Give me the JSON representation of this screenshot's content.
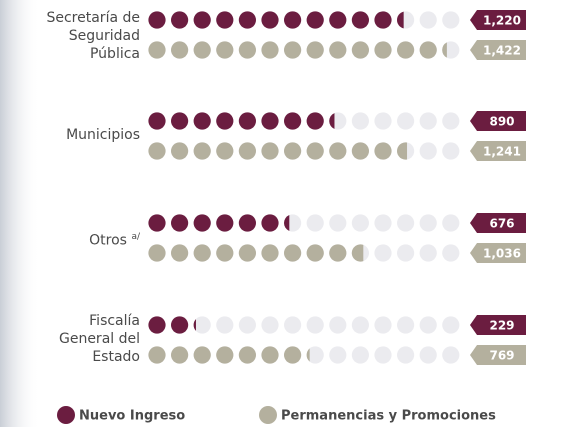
{
  "chart_data": {
    "type": "pictogram",
    "categories": [
      "Secretaría de Seguridad Pública",
      "Municipios",
      "Otros",
      "Fiscalía General del Estado"
    ],
    "category_superscripts": [
      null,
      null,
      "a/",
      null
    ],
    "series": [
      {
        "name": "Nuevo Ingreso",
        "color": "#6b1d40",
        "values": [
          1220,
          890,
          676,
          229
        ],
        "value_labels": [
          "1,220",
          "890",
          "676",
          "229"
        ]
      },
      {
        "name": "Permanencias y Promociones",
        "color": "#b4b09e",
        "values": [
          1422,
          1241,
          1036,
          769
        ],
        "value_labels": [
          "1,422",
          "1,241",
          "1,036",
          "769"
        ]
      }
    ],
    "xlim": [
      0,
      1500
    ],
    "empty_color": "#ebebef"
  }
}
